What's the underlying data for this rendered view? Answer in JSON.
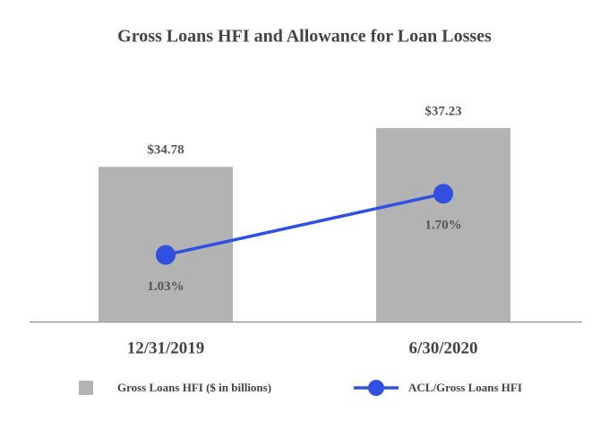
{
  "chart_data": {
    "type": "bar-line",
    "title": "Gross Loans HFI and Allowance for Loan Losses",
    "categories": [
      "12/31/2019",
      "6/30/2020"
    ],
    "series": [
      {
        "name": "Gross Loans HFI ($ in billions)",
        "type": "bar",
        "color": "#b3b3b3",
        "values": [
          34.78,
          37.23
        ],
        "value_labels": [
          "$34.78",
          "$37.23"
        ]
      },
      {
        "name": "ACL/Gross Loans HFI",
        "type": "line",
        "axis": "y2",
        "color": "#3150e0",
        "values": [
          1.03,
          1.7
        ],
        "value_labels": [
          "1.03%",
          "1.70%"
        ]
      }
    ],
    "ylim": [
      25,
      40
    ],
    "y2lim": [
      0.3,
      2.9
    ],
    "grid": false
  }
}
